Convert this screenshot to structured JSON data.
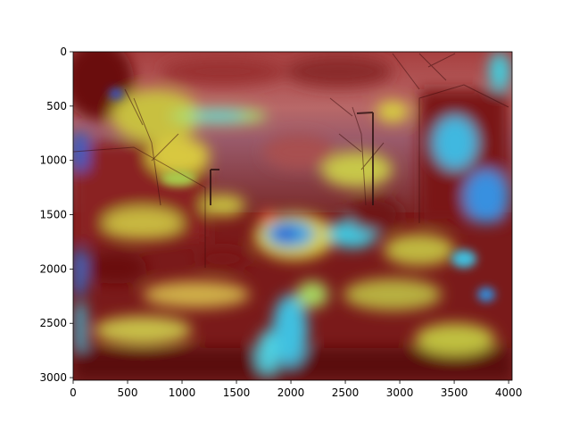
{
  "image": {
    "description_icon": "heatmap-overlay-street-photo",
    "colors": {
      "dark_red": "#6e1010",
      "red": "#a82020",
      "orange": "#d87030",
      "yellow": "#d8d040",
      "green_yellow": "#a8d050",
      "cyan": "#40c8e0",
      "blue": "#2060d8",
      "deep_blue": "#2030a0",
      "sky_pink": "#c88a8a"
    }
  },
  "axes": {
    "x_ticks": [
      "0",
      "500",
      "1000",
      "1500",
      "2000",
      "2500",
      "3000",
      "3500",
      "4000"
    ],
    "x_values": [
      0,
      500,
      1000,
      1500,
      2000,
      2500,
      3000,
      3500,
      4000
    ],
    "y_ticks": [
      "0",
      "500",
      "1000",
      "1500",
      "2000",
      "2500",
      "3000"
    ],
    "y_values": [
      0,
      500,
      1000,
      1500,
      2000,
      2500,
      3000
    ],
    "x_range": [
      0,
      4032
    ],
    "y_range": [
      0,
      3024
    ]
  }
}
